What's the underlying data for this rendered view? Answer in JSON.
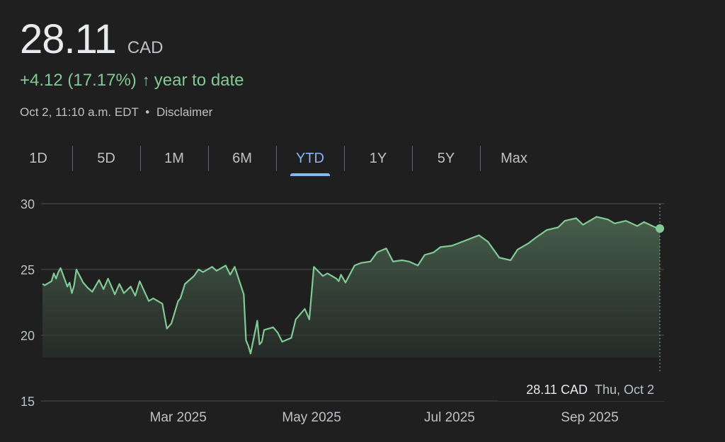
{
  "quote": {
    "price": "28.11",
    "currency": "CAD",
    "change": "+4.12 (17.17%)",
    "change_arrow": "↑",
    "change_period": "year to date",
    "timestamp": "Oct 2, 11:10 a.m. EDT",
    "separator": "•",
    "disclaimer": "Disclaimer",
    "positive_color": "#81c995"
  },
  "tabs": [
    {
      "label": "1D"
    },
    {
      "label": "5D"
    },
    {
      "label": "1M"
    },
    {
      "label": "6M"
    },
    {
      "label": "YTD",
      "active": true
    },
    {
      "label": "1Y"
    },
    {
      "label": "5Y"
    },
    {
      "label": "Max"
    }
  ],
  "tooltip": {
    "value": "28.11 CAD",
    "date": "Thu, Oct 2"
  },
  "chart_data": {
    "type": "area",
    "ylim": [
      15,
      30
    ],
    "yticks": [
      30,
      25,
      20,
      15
    ],
    "xlim": [
      "2025-01-02",
      "2025-10-02"
    ],
    "xticks": [
      {
        "label": "Mar 2025",
        "date": "2025-03-03"
      },
      {
        "label": "May 2025",
        "date": "2025-05-01"
      },
      {
        "label": "Jul 2025",
        "date": "2025-07-01"
      },
      {
        "label": "Sep 2025",
        "date": "2025-09-01"
      }
    ],
    "grid": true,
    "line_color": "#81c995",
    "series": [
      {
        "x": [
          "2025-01-02",
          "2025-01-03",
          "2025-01-06",
          "2025-01-07",
          "2025-01-08",
          "2025-01-09",
          "2025-01-10",
          "2025-01-13",
          "2025-01-14",
          "2025-01-15",
          "2025-01-16",
          "2025-01-17",
          "2025-01-20",
          "2025-01-22",
          "2025-01-24",
          "2025-01-27",
          "2025-01-29",
          "2025-01-31",
          "2025-02-03",
          "2025-02-05",
          "2025-02-07",
          "2025-02-10",
          "2025-02-12",
          "2025-02-14",
          "2025-02-18",
          "2025-02-20",
          "2025-02-24",
          "2025-02-26",
          "2025-02-28",
          "2025-03-03",
          "2025-03-04",
          "2025-03-06",
          "2025-03-10",
          "2025-03-12",
          "2025-03-14",
          "2025-03-18",
          "2025-03-20",
          "2025-03-24",
          "2025-03-26",
          "2025-03-28",
          "2025-04-01",
          "2025-04-02",
          "2025-04-03",
          "2025-04-04",
          "2025-04-07",
          "2025-04-08",
          "2025-04-09",
          "2025-04-10",
          "2025-04-14",
          "2025-04-16",
          "2025-04-18",
          "2025-04-22",
          "2025-04-24",
          "2025-04-28",
          "2025-04-30",
          "2025-05-02",
          "2025-05-06",
          "2025-05-08",
          "2025-05-12",
          "2025-05-13",
          "2025-05-14",
          "2025-05-16",
          "2025-05-20",
          "2025-05-23",
          "2025-05-27",
          "2025-05-30",
          "2025-06-03",
          "2025-06-06",
          "2025-06-10",
          "2025-06-13",
          "2025-06-17",
          "2025-06-20",
          "2025-06-24",
          "2025-06-27",
          "2025-07-02",
          "2025-07-08",
          "2025-07-14",
          "2025-07-18",
          "2025-07-23",
          "2025-07-28",
          "2025-07-31",
          "2025-08-05",
          "2025-08-08",
          "2025-08-13",
          "2025-08-18",
          "2025-08-21",
          "2025-08-26",
          "2025-08-29",
          "2025-09-04",
          "2025-09-09",
          "2025-09-12",
          "2025-09-17",
          "2025-09-22",
          "2025-09-25",
          "2025-09-30",
          "2025-10-02"
        ],
        "y": [
          23.9,
          23.8,
          24.1,
          24.7,
          24.3,
          24.8,
          25.1,
          23.7,
          24.0,
          23.2,
          23.8,
          25.0,
          24.0,
          23.6,
          23.3,
          24.2,
          23.5,
          24.3,
          23.1,
          23.9,
          23.2,
          23.7,
          23.0,
          24.1,
          22.6,
          22.8,
          22.4,
          20.5,
          20.9,
          22.6,
          22.8,
          23.9,
          24.5,
          25.0,
          24.8,
          25.2,
          24.9,
          25.3,
          24.6,
          25.2,
          23.1,
          19.6,
          19.2,
          18.6,
          21.1,
          19.3,
          19.5,
          20.4,
          20.6,
          20.2,
          19.5,
          19.8,
          21.2,
          22.0,
          21.2,
          25.2,
          24.5,
          24.7,
          24.3,
          24.1,
          24.6,
          24.0,
          25.3,
          25.5,
          25.6,
          26.3,
          26.6,
          25.6,
          25.7,
          25.6,
          25.3,
          26.1,
          26.3,
          26.7,
          26.8,
          27.2,
          27.6,
          27.1,
          25.9,
          25.7,
          26.5,
          27.0,
          27.4,
          28.0,
          28.2,
          28.7,
          28.9,
          28.4,
          29.0,
          28.8,
          28.5,
          28.7,
          28.3,
          28.6,
          28.2,
          28.11
        ]
      }
    ]
  }
}
